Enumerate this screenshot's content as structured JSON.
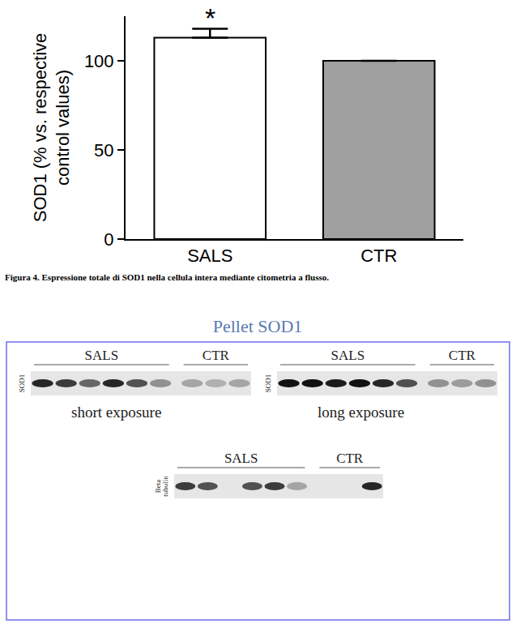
{
  "chart_data": {
    "type": "bar",
    "categories": [
      "SALS",
      "CTR"
    ],
    "values": [
      113,
      100
    ],
    "errors": [
      5,
      null
    ],
    "colors": [
      "#ffffff",
      "#a0a0a0"
    ],
    "ylabel": "SOD1 (% vs. respective\ncontrol values)",
    "ylim": [
      0,
      125
    ],
    "yticks": [
      0,
      50,
      100
    ],
    "grid": false,
    "annotations": [
      {
        "category": "SALS",
        "text": "*"
      }
    ]
  },
  "caption": "Figura 4. Espressione totale di SOD1 nella cellula intera mediante citometria a flusso.",
  "blot_figure": {
    "title": "Pellet SOD1",
    "panels": [
      {
        "protein": "SOD1",
        "exposure": "short exposure",
        "groups": [
          {
            "name": "SALS",
            "bands": [
              0.9,
              0.8,
              0.6,
              0.9,
              0.7,
              0.4
            ]
          },
          {
            "name": "CTR",
            "bands": [
              0.3,
              0.25,
              0.3
            ]
          }
        ]
      },
      {
        "protein": "SOD1",
        "exposure": "long exposure",
        "groups": [
          {
            "name": "SALS",
            "bands": [
              1,
              1,
              0.95,
              1,
              0.9,
              0.7
            ]
          },
          {
            "name": "CTR",
            "bands": [
              0.4,
              0.35,
              0.4
            ]
          }
        ]
      },
      {
        "protein": "Beta tubulin",
        "groups": [
          {
            "name": "SALS",
            "bands": [
              0.8,
              0.7,
              0,
              0.7,
              0.8,
              0.3
            ]
          },
          {
            "name": "CTR",
            "bands": [
              0,
              0,
              0.9
            ]
          }
        ]
      }
    ]
  }
}
